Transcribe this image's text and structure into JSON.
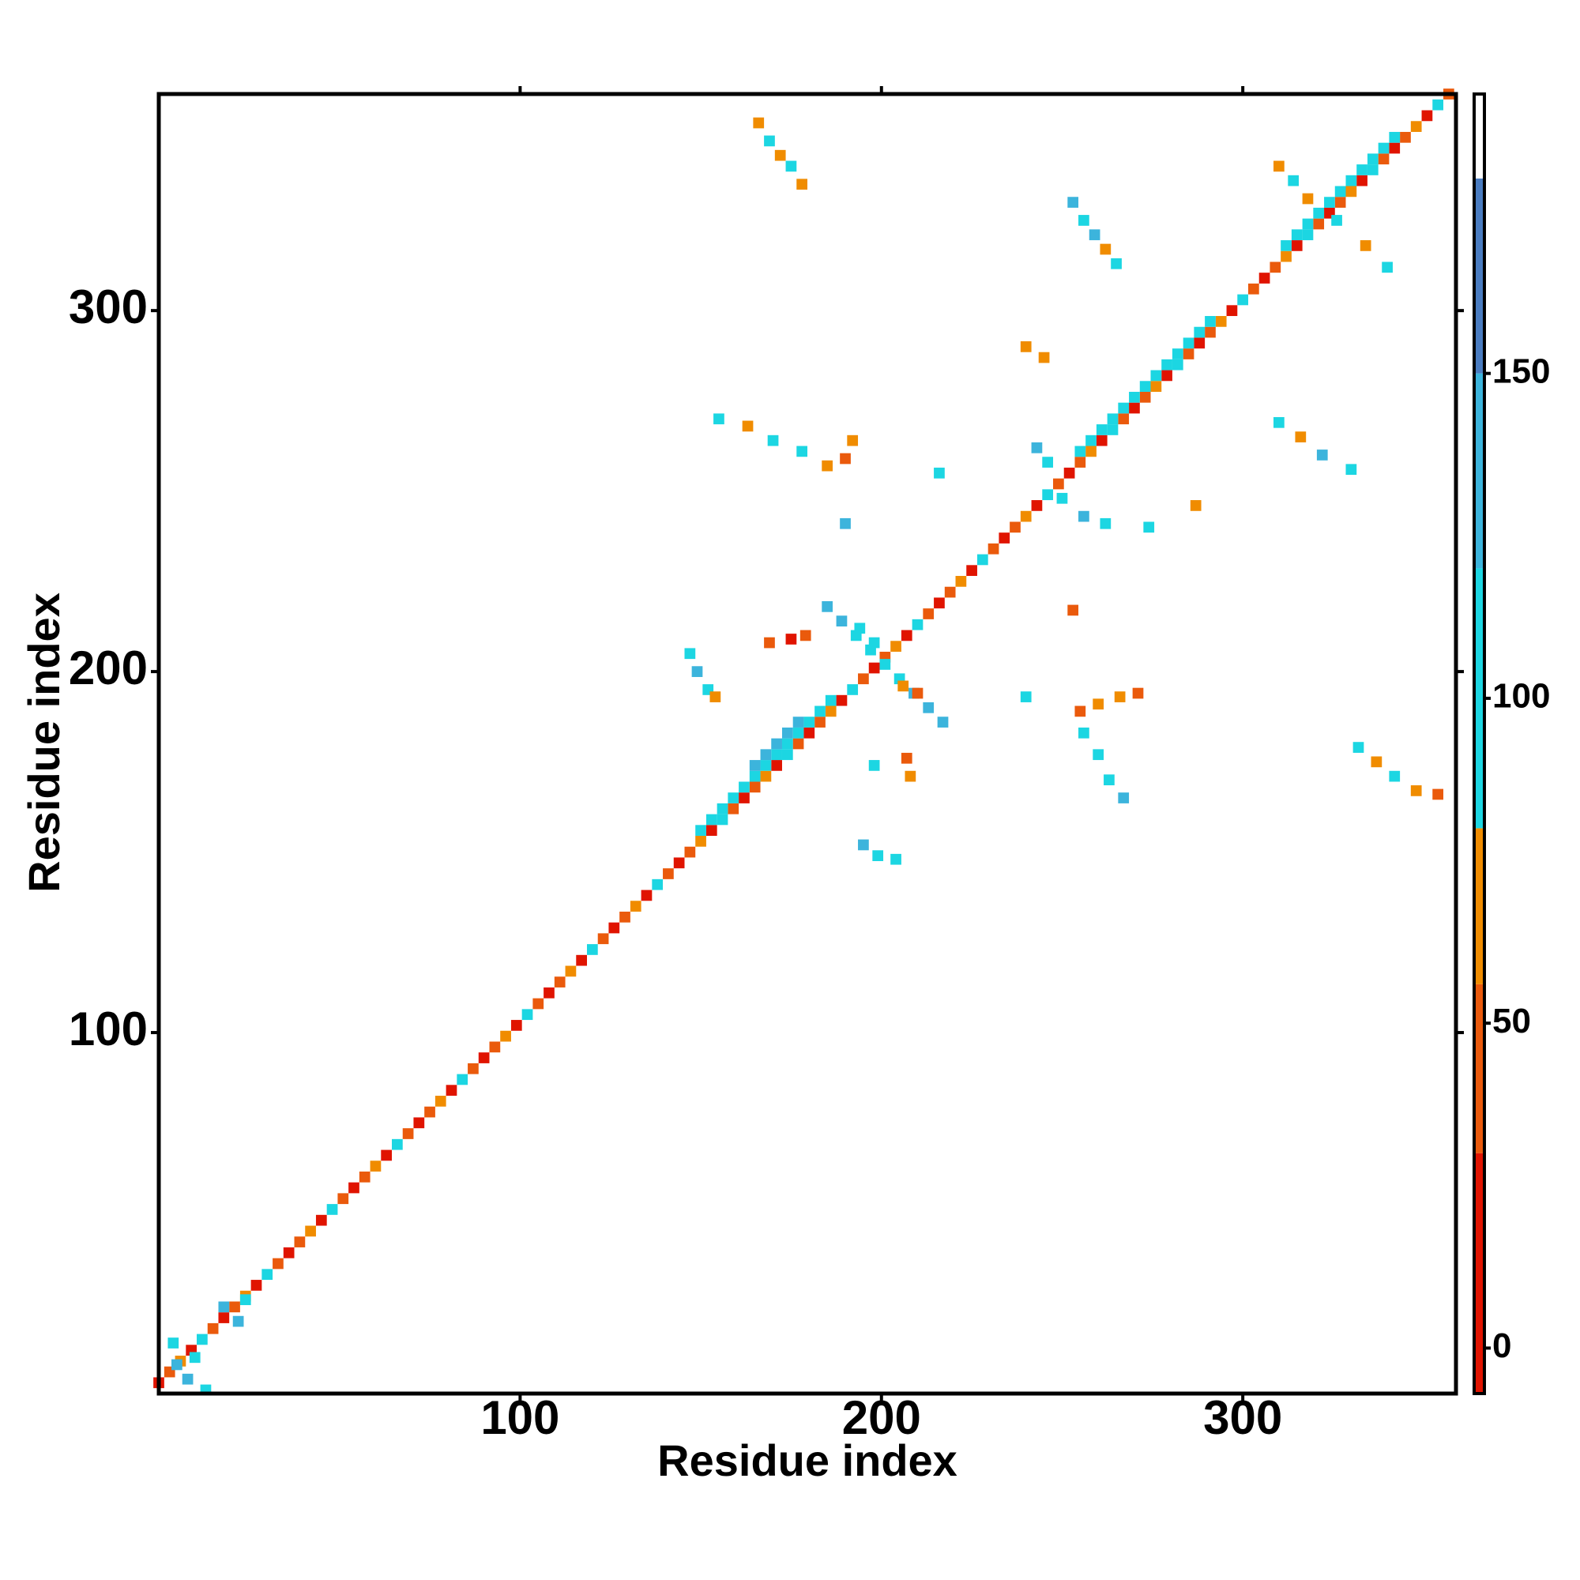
{
  "chart_data": {
    "type": "heatmap",
    "xlabel": "Residue index",
    "ylabel": "Residue index",
    "xlim": [
      0,
      359
    ],
    "ylim": [
      0,
      360
    ],
    "xticks": [
      100,
      200,
      300
    ],
    "yticks": [
      100,
      200,
      300
    ],
    "cell_size": 3,
    "colorbar": {
      "ylim": [
        -7,
        193
      ],
      "ticks": [
        0,
        50,
        100,
        150
      ],
      "bands": [
        {
          "from": -7,
          "to": 30,
          "color": "#e01400"
        },
        {
          "from": 30,
          "to": 56,
          "color": "#ea5a0c"
        },
        {
          "from": 56,
          "to": 80,
          "color": "#f08c00"
        },
        {
          "from": 80,
          "to": 120,
          "color": "#1cd6e2"
        },
        {
          "from": 120,
          "to": 150,
          "color": "#3cb4dc"
        },
        {
          "from": 150,
          "to": 180,
          "color": "#4a7cc0"
        },
        {
          "from": 180,
          "to": 193,
          "color": "#ffffff"
        }
      ]
    },
    "cells": [
      [
        0,
        3,
        15
      ],
      [
        3,
        6,
        45
      ],
      [
        6,
        9,
        60
      ],
      [
        9,
        12,
        20
      ],
      [
        12,
        15,
        95
      ],
      [
        15,
        18,
        40
      ],
      [
        18,
        21,
        15
      ],
      [
        21,
        24,
        45
      ],
      [
        24,
        27,
        60
      ],
      [
        27,
        30,
        20
      ],
      [
        30,
        33,
        95
      ],
      [
        33,
        36,
        40
      ],
      [
        36,
        39,
        15
      ],
      [
        39,
        42,
        45
      ],
      [
        42,
        45,
        60
      ],
      [
        45,
        48,
        20
      ],
      [
        48,
        51,
        95
      ],
      [
        51,
        54,
        40
      ],
      [
        54,
        57,
        15
      ],
      [
        57,
        60,
        45
      ],
      [
        60,
        63,
        60
      ],
      [
        63,
        66,
        20
      ],
      [
        66,
        69,
        95
      ],
      [
        69,
        72,
        40
      ],
      [
        72,
        75,
        15
      ],
      [
        75,
        78,
        45
      ],
      [
        78,
        81,
        60
      ],
      [
        81,
        84,
        20
      ],
      [
        84,
        87,
        95
      ],
      [
        87,
        90,
        40
      ],
      [
        90,
        93,
        15
      ],
      [
        93,
        96,
        45
      ],
      [
        96,
        99,
        60
      ],
      [
        99,
        102,
        20
      ],
      [
        102,
        105,
        95
      ],
      [
        105,
        108,
        40
      ],
      [
        108,
        111,
        15
      ],
      [
        111,
        114,
        45
      ],
      [
        114,
        117,
        60
      ],
      [
        117,
        120,
        20
      ],
      [
        120,
        123,
        95
      ],
      [
        123,
        126,
        40
      ],
      [
        126,
        129,
        15
      ],
      [
        129,
        132,
        45
      ],
      [
        132,
        135,
        60
      ],
      [
        135,
        138,
        20
      ],
      [
        138,
        141,
        95
      ],
      [
        141,
        144,
        40
      ],
      [
        144,
        147,
        15
      ],
      [
        147,
        150,
        45
      ],
      [
        150,
        153,
        60
      ],
      [
        153,
        156,
        20
      ],
      [
        156,
        159,
        95
      ],
      [
        159,
        162,
        40
      ],
      [
        162,
        165,
        15
      ],
      [
        165,
        168,
        45
      ],
      [
        168,
        171,
        60
      ],
      [
        171,
        174,
        20
      ],
      [
        174,
        177,
        95
      ],
      [
        177,
        180,
        40
      ],
      [
        180,
        183,
        15
      ],
      [
        183,
        186,
        45
      ],
      [
        186,
        189,
        60
      ],
      [
        189,
        192,
        20
      ],
      [
        192,
        195,
        95
      ],
      [
        195,
        198,
        40
      ],
      [
        198,
        201,
        15
      ],
      [
        201,
        204,
        45
      ],
      [
        204,
        207,
        60
      ],
      [
        207,
        210,
        20
      ],
      [
        210,
        213,
        95
      ],
      [
        213,
        216,
        40
      ],
      [
        216,
        219,
        15
      ],
      [
        219,
        222,
        45
      ],
      [
        222,
        225,
        60
      ],
      [
        225,
        228,
        20
      ],
      [
        228,
        231,
        95
      ],
      [
        231,
        234,
        40
      ],
      [
        234,
        237,
        15
      ],
      [
        237,
        240,
        45
      ],
      [
        240,
        243,
        60
      ],
      [
        243,
        246,
        20
      ],
      [
        246,
        249,
        95
      ],
      [
        249,
        252,
        40
      ],
      [
        252,
        255,
        15
      ],
      [
        255,
        258,
        45
      ],
      [
        258,
        261,
        60
      ],
      [
        261,
        264,
        20
      ],
      [
        264,
        267,
        95
      ],
      [
        267,
        270,
        40
      ],
      [
        270,
        273,
        15
      ],
      [
        273,
        276,
        45
      ],
      [
        276,
        279,
        60
      ],
      [
        279,
        282,
        20
      ],
      [
        282,
        285,
        95
      ],
      [
        285,
        288,
        40
      ],
      [
        288,
        291,
        15
      ],
      [
        291,
        294,
        45
      ],
      [
        294,
        297,
        60
      ],
      [
        297,
        300,
        20
      ],
      [
        300,
        303,
        95
      ],
      [
        303,
        306,
        40
      ],
      [
        306,
        309,
        15
      ],
      [
        309,
        312,
        45
      ],
      [
        312,
        315,
        60
      ],
      [
        315,
        318,
        20
      ],
      [
        318,
        321,
        95
      ],
      [
        321,
        324,
        40
      ],
      [
        324,
        327,
        15
      ],
      [
        327,
        330,
        45
      ],
      [
        330,
        333,
        60
      ],
      [
        333,
        336,
        20
      ],
      [
        336,
        339,
        95
      ],
      [
        339,
        342,
        40
      ],
      [
        342,
        345,
        15
      ],
      [
        345,
        348,
        45
      ],
      [
        348,
        351,
        60
      ],
      [
        351,
        354,
        20
      ],
      [
        354,
        357,
        95
      ],
      [
        357,
        360,
        40
      ],
      [
        150,
        156,
        95
      ],
      [
        153,
        159,
        95
      ],
      [
        156,
        162,
        95
      ],
      [
        159,
        165,
        95
      ],
      [
        162,
        168,
        95
      ],
      [
        165,
        171,
        95
      ],
      [
        168,
        174,
        95
      ],
      [
        171,
        177,
        95
      ],
      [
        174,
        180,
        95
      ],
      [
        177,
        183,
        95
      ],
      [
        180,
        186,
        95
      ],
      [
        183,
        189,
        95
      ],
      [
        186,
        192,
        95
      ],
      [
        165,
        174,
        120
      ],
      [
        168,
        177,
        120
      ],
      [
        171,
        180,
        120
      ],
      [
        174,
        183,
        120
      ],
      [
        177,
        186,
        120
      ],
      [
        255,
        261,
        95
      ],
      [
        258,
        264,
        95
      ],
      [
        261,
        267,
        95
      ],
      [
        264,
        270,
        95
      ],
      [
        267,
        273,
        95
      ],
      [
        270,
        276,
        95
      ],
      [
        273,
        279,
        95
      ],
      [
        276,
        282,
        95
      ],
      [
        279,
        285,
        95
      ],
      [
        282,
        288,
        95
      ],
      [
        285,
        291,
        95
      ],
      [
        288,
        294,
        95
      ],
      [
        291,
        297,
        95
      ],
      [
        312,
        318,
        95
      ],
      [
        315,
        321,
        95
      ],
      [
        318,
        324,
        95
      ],
      [
        321,
        327,
        95
      ],
      [
        324,
        330,
        95
      ],
      [
        327,
        333,
        95
      ],
      [
        330,
        336,
        95
      ],
      [
        333,
        339,
        95
      ],
      [
        336,
        342,
        95
      ],
      [
        339,
        345,
        95
      ],
      [
        342,
        348,
        95
      ],
      [
        5,
        8,
        120
      ],
      [
        8,
        4,
        120
      ],
      [
        10,
        10,
        95
      ],
      [
        4,
        14,
        95
      ],
      [
        13,
        1,
        95
      ],
      [
        18,
        24,
        120
      ],
      [
        22,
        20,
        120
      ],
      [
        24,
        26,
        95
      ],
      [
        166,
        352,
        60
      ],
      [
        169,
        347,
        95
      ],
      [
        172,
        343,
        60
      ],
      [
        175,
        340,
        95
      ],
      [
        178,
        335,
        60
      ],
      [
        253,
        330,
        120
      ],
      [
        256,
        325,
        95
      ],
      [
        259,
        321,
        120
      ],
      [
        262,
        317,
        60
      ],
      [
        265,
        313,
        95
      ],
      [
        310,
        340,
        60
      ],
      [
        314,
        336,
        95
      ],
      [
        318,
        331,
        60
      ],
      [
        326,
        325,
        95
      ],
      [
        334,
        318,
        60
      ],
      [
        340,
        312,
        95
      ],
      [
        240,
        290,
        60
      ],
      [
        245,
        287,
        60
      ],
      [
        155,
        270,
        95
      ],
      [
        163,
        268,
        60
      ],
      [
        170,
        264,
        95
      ],
      [
        178,
        261,
        95
      ],
      [
        185,
        257,
        60
      ],
      [
        190,
        259,
        40
      ],
      [
        192,
        264,
        60
      ],
      [
        310,
        269,
        95
      ],
      [
        316,
        265,
        60
      ],
      [
        322,
        260,
        120
      ],
      [
        330,
        256,
        95
      ],
      [
        243,
        262,
        120
      ],
      [
        246,
        258,
        95
      ],
      [
        250,
        248,
        95
      ],
      [
        256,
        243,
        120
      ],
      [
        262,
        241,
        95
      ],
      [
        287,
        246,
        60
      ],
      [
        274,
        240,
        95
      ],
      [
        216,
        255,
        95
      ],
      [
        190,
        241,
        120
      ],
      [
        185,
        218,
        120
      ],
      [
        189,
        214,
        120
      ],
      [
        193,
        210,
        95
      ],
      [
        197,
        206,
        95
      ],
      [
        201,
        202,
        95
      ],
      [
        205,
        198,
        95
      ],
      [
        209,
        194,
        120
      ],
      [
        213,
        190,
        120
      ],
      [
        217,
        186,
        120
      ],
      [
        194,
        212,
        95
      ],
      [
        198,
        208,
        95
      ],
      [
        206,
        196,
        60
      ],
      [
        210,
        194,
        40
      ],
      [
        169,
        208,
        40
      ],
      [
        175,
        209,
        10
      ],
      [
        179,
        210,
        40
      ],
      [
        147,
        205,
        95
      ],
      [
        149,
        200,
        120
      ],
      [
        152,
        195,
        95
      ],
      [
        154,
        193,
        60
      ],
      [
        255,
        189,
        40
      ],
      [
        260,
        191,
        60
      ],
      [
        266,
        193,
        60
      ],
      [
        271,
        194,
        40
      ],
      [
        256,
        183,
        95
      ],
      [
        260,
        177,
        95
      ],
      [
        263,
        170,
        95
      ],
      [
        267,
        165,
        120
      ],
      [
        332,
        179,
        95
      ],
      [
        337,
        175,
        60
      ],
      [
        342,
        171,
        95
      ],
      [
        348,
        167,
        60
      ],
      [
        354,
        166,
        40
      ],
      [
        198,
        174,
        95
      ],
      [
        207,
        176,
        40
      ],
      [
        208,
        171,
        60
      ],
      [
        195,
        152,
        120
      ],
      [
        199,
        149,
        95
      ],
      [
        204,
        148,
        95
      ],
      [
        240,
        193,
        95
      ],
      [
        253,
        217,
        40
      ]
    ]
  }
}
